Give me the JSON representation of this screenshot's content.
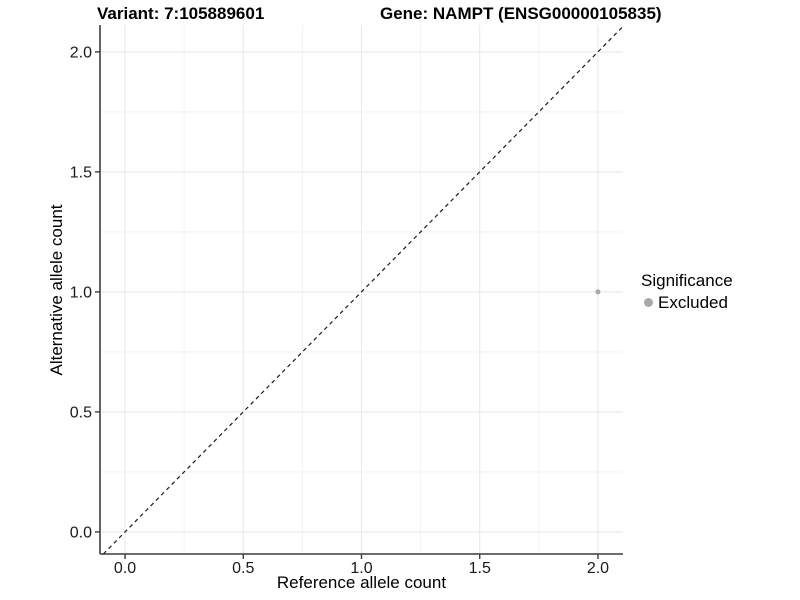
{
  "titles": {
    "variant": "Variant: 7:105889601",
    "gene": "Gene: NAMPT (ENSG00000105835)"
  },
  "axes": {
    "x_label": "Reference allele count",
    "y_label": "Alternative allele count"
  },
  "legend": {
    "title": "Significance",
    "position": "right",
    "items": [
      {
        "label": "Excluded",
        "color": "#a9a9a9",
        "marker": "circle"
      }
    ]
  },
  "chart_data": {
    "type": "scatter",
    "title": "Variant: 7:105889601    Gene: NAMPT (ENSG00000105835)",
    "xlabel": "Reference allele count",
    "ylabel": "Alternative allele count",
    "points": [
      {
        "x": 2.0,
        "y": 1.0,
        "series": "Excluded",
        "color": "#a9a9a9"
      }
    ],
    "x_ticks": [
      0.0,
      0.5,
      1.0,
      1.5,
      2.0
    ],
    "y_ticks": [
      0.0,
      0.5,
      1.0,
      1.5,
      2.0
    ],
    "x_tick_labels": [
      "0.0",
      "0.5",
      "1.0",
      "1.5",
      "2.0"
    ],
    "y_tick_labels": [
      "0.0",
      "0.5",
      "1.0",
      "1.5",
      "2.0"
    ],
    "minor_ticks": [
      0.25,
      0.75,
      1.25,
      1.75
    ],
    "xlim": [
      -0.106,
      2.106
    ],
    "ylim": [
      -0.092,
      2.112
    ],
    "grid": true,
    "legend_position": "right",
    "reference_line": {
      "type": "identity",
      "slope": 1,
      "intercept": 0,
      "style": "dashed"
    },
    "colors": {
      "point": "#a9a9a9",
      "grid_major": "#e7e7e7",
      "grid_minor": "#f3f3f3",
      "axis": "#3d3d3d",
      "ref_line": "#1a1a1a",
      "tick_text": "#1a1a1a"
    }
  }
}
